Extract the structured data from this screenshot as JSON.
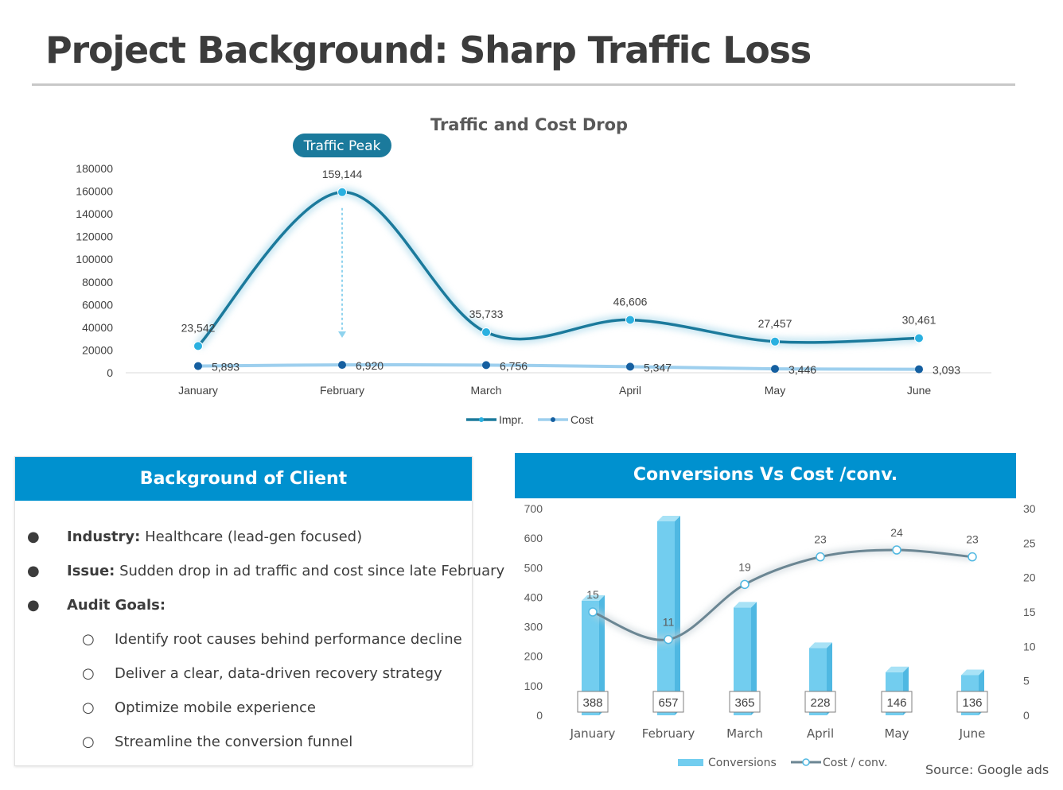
{
  "page": {
    "title": "Project Background: Sharp Traffic Loss",
    "source": "Source: Google ads"
  },
  "colors": {
    "impr": "#1b7a9c",
    "impr_marker": "#2ab0e0",
    "cost": "#9dcfee",
    "cost_marker": "#155fa0",
    "header_blue": "#0091cf",
    "conv_bar": "#72cdef",
    "cost_conv_line": "#6b8693",
    "badge": "#1b7a9c"
  },
  "background": {
    "header": "Background of Client",
    "items": [
      {
        "label": "Industry:",
        "text": " Healthcare (lead-gen focused)"
      },
      {
        "label": "Issue:",
        "text": " Sudden drop in ad traffic and cost since late February"
      },
      {
        "label": "Audit Goals:",
        "text": ""
      }
    ],
    "goals": [
      "Identify root causes behind performance decline",
      "Deliver a clear, data-driven recovery strategy",
      "Optimize mobile experience",
      "Streamline the conversion funnel"
    ]
  },
  "chart_data": [
    {
      "type": "line",
      "title": "Traffic and Cost Drop",
      "categories": [
        "January",
        "February",
        "March",
        "April",
        "May",
        "June"
      ],
      "series": [
        {
          "name": "Impr.",
          "values": [
            23542,
            159144,
            35733,
            46606,
            27457,
            30461
          ],
          "labels": [
            "23,542",
            "159,144",
            "35,733",
            "46,606",
            "27,457",
            "30,461"
          ]
        },
        {
          "name": "Cost",
          "values": [
            5893,
            6920,
            6756,
            5347,
            3446,
            3093
          ],
          "labels": [
            "5,893",
            "6,920",
            "6,756",
            "5,347",
            "3,446",
            "3,093"
          ]
        }
      ],
      "ylim": [
        0,
        180000
      ],
      "yticks": [
        "0",
        "20000",
        "40000",
        "60000",
        "80000",
        "100000",
        "120000",
        "140000",
        "160000",
        "180000"
      ],
      "smooth": true,
      "legend": "bottom",
      "grid": false,
      "annotation": {
        "text": "Traffic Peak",
        "category": "February"
      }
    },
    {
      "type": "bar",
      "title": "Conversions Vs Cost /conv.",
      "categories": [
        "January",
        "February",
        "March",
        "April",
        "May",
        "June"
      ],
      "series": [
        {
          "name": "Conversions",
          "type": "bar",
          "axis": "left",
          "values": [
            388,
            657,
            365,
            228,
            146,
            136
          ],
          "labels": [
            "388",
            "657",
            "365",
            "228",
            "146",
            "136"
          ]
        },
        {
          "name": "Cost / conv.",
          "type": "line",
          "axis": "right",
          "values": [
            15,
            11,
            19,
            23,
            24,
            23
          ],
          "labels": [
            "15",
            "11",
            "19",
            "23",
            "24",
            "23"
          ]
        }
      ],
      "ylim_left": [
        0,
        700
      ],
      "yticks_left": [
        "0",
        "100",
        "200",
        "300",
        "400",
        "500",
        "600",
        "700"
      ],
      "ylim_right": [
        0,
        30
      ],
      "yticks_right": [
        "0",
        "5",
        "10",
        "15",
        "20",
        "25",
        "30"
      ],
      "legend": "bottom",
      "grid": false
    }
  ]
}
